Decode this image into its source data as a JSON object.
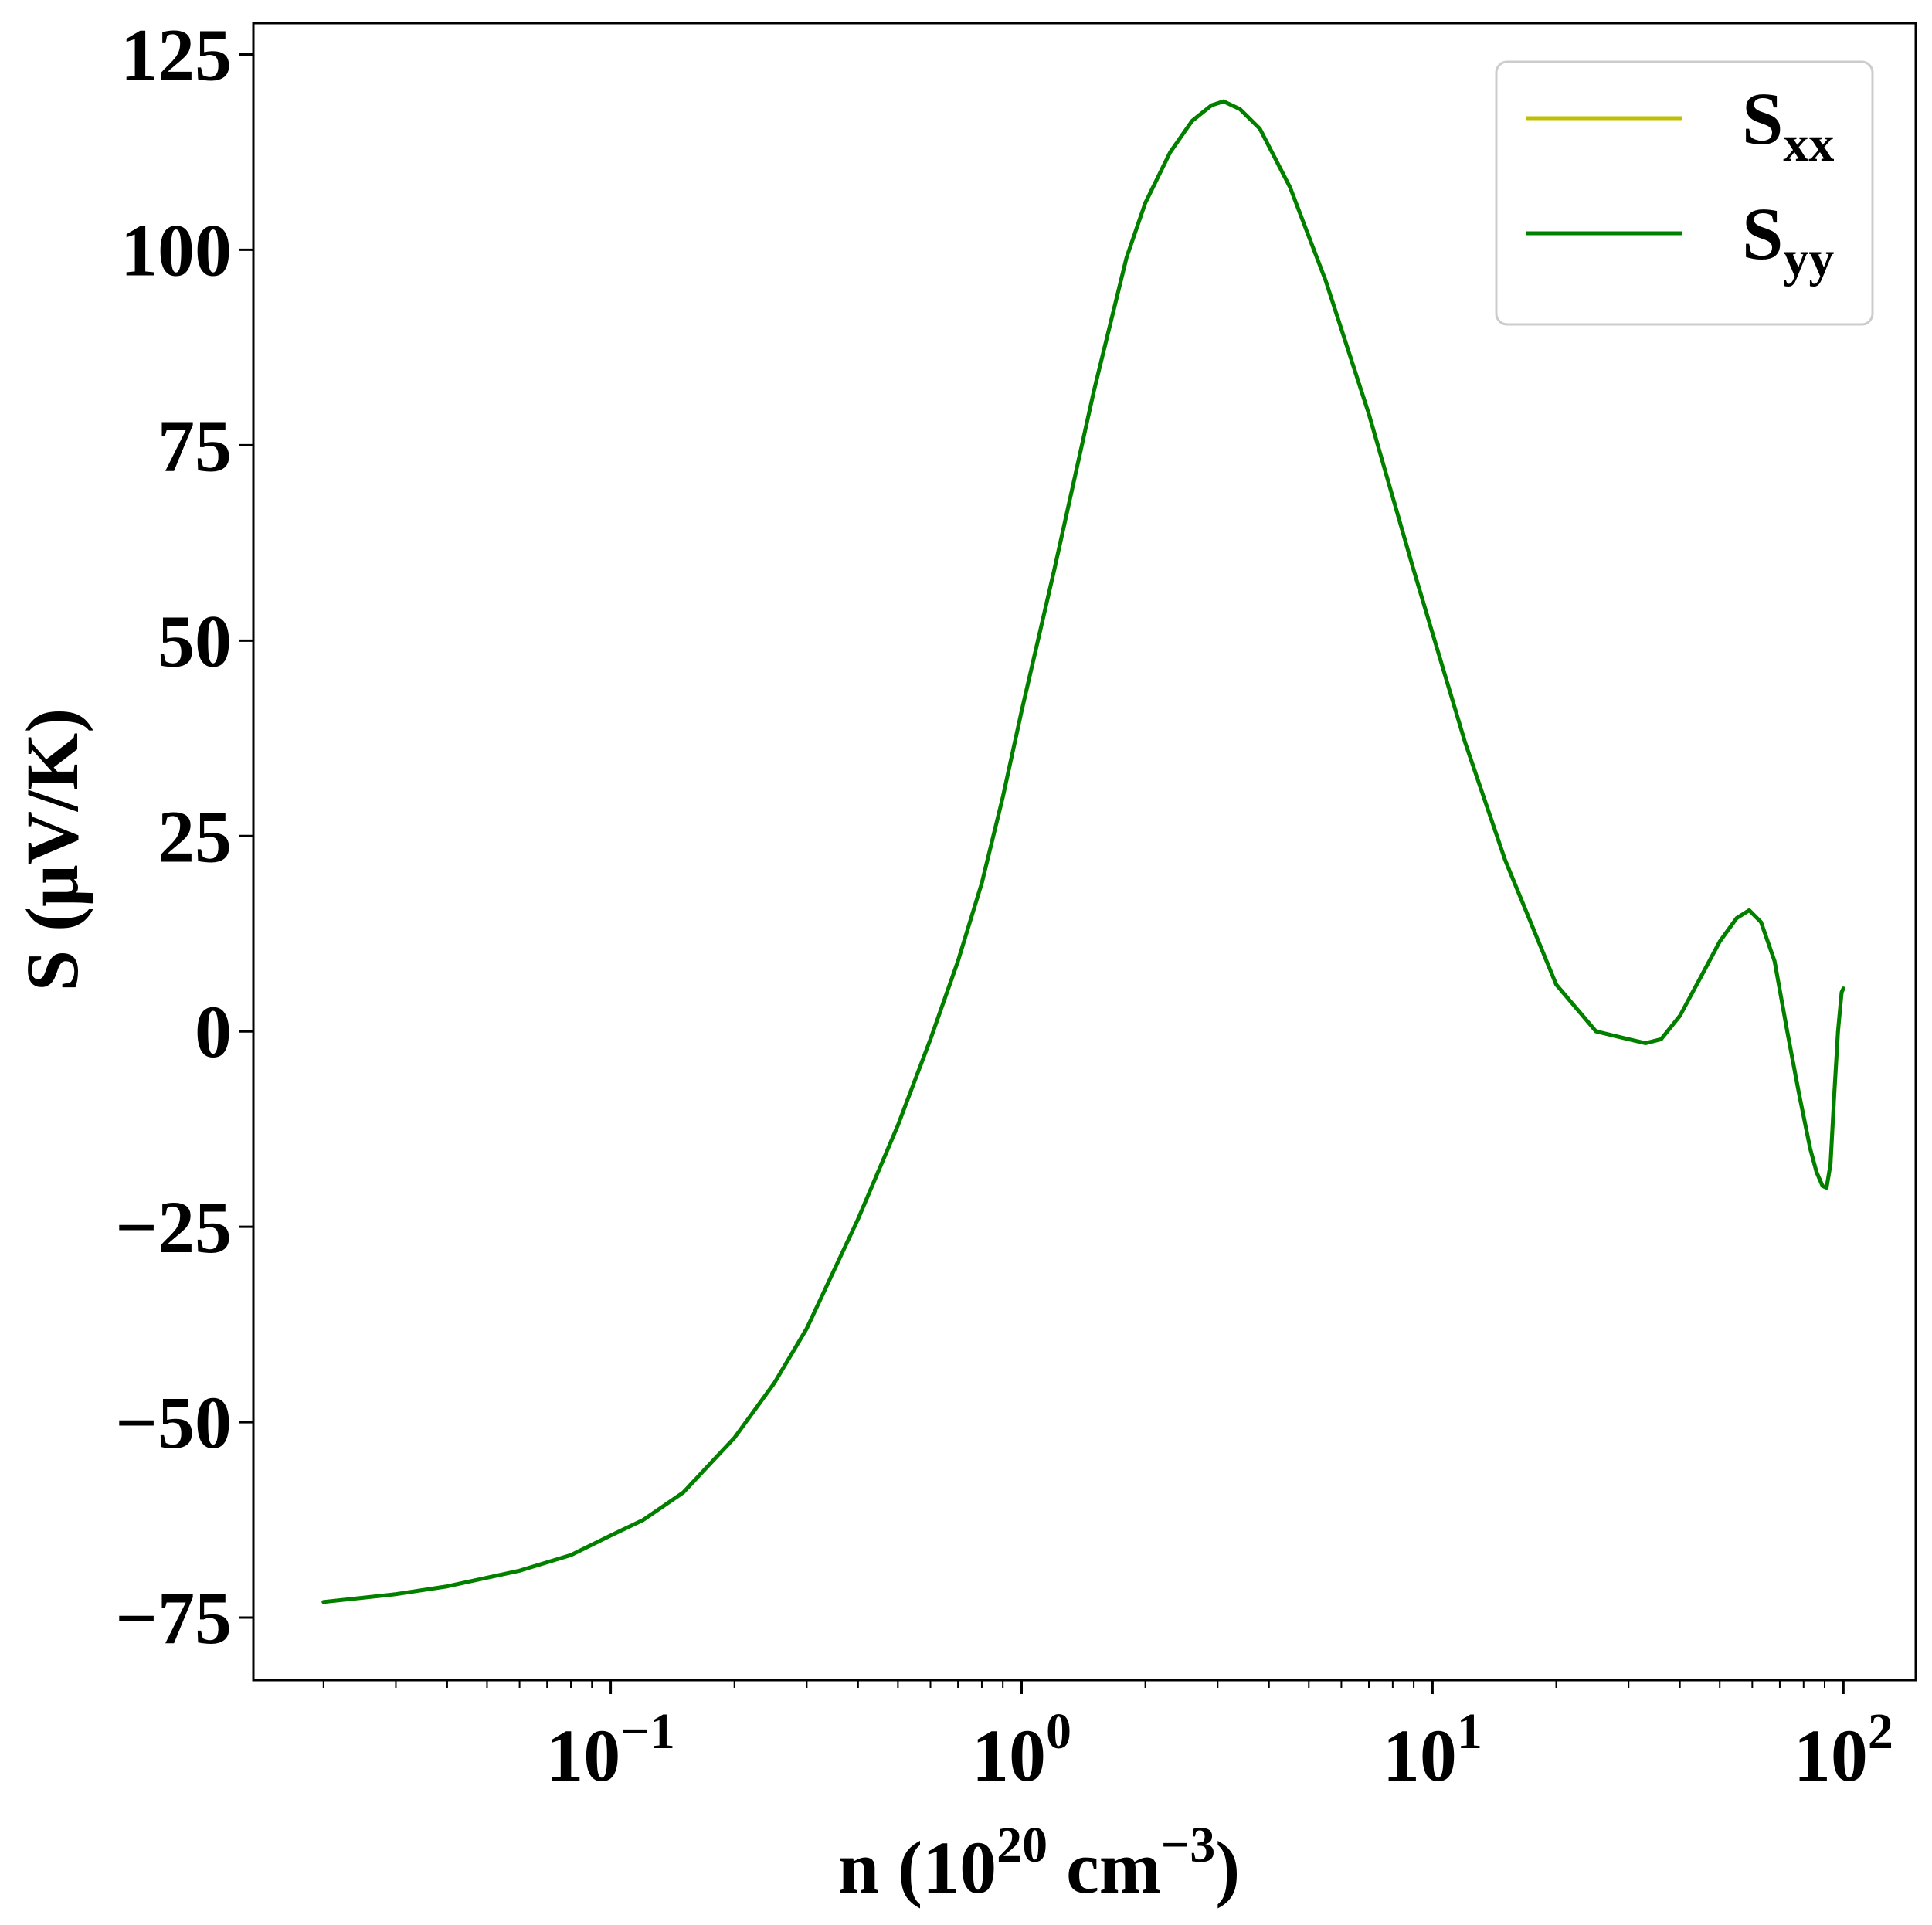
{
  "chart_data": {
    "type": "line",
    "xscale": "log",
    "xlim": [
      0.0135,
      150
    ],
    "ylim": [
      -83,
      129
    ],
    "grid": false,
    "legend_placement": "top-right",
    "xlabel": {
      "prefix": "n (10",
      "sup1": "20",
      "mid": " cm",
      "sup2": "−3",
      "suffix": ")"
    },
    "ylabel": "S (μV/K)",
    "x_ticks": [
      {
        "value": 0.1,
        "base": "10",
        "exp": "−1"
      },
      {
        "value": 1,
        "base": "10",
        "exp": "0"
      },
      {
        "value": 10,
        "base": "10",
        "exp": "1"
      },
      {
        "value": 100,
        "base": "10",
        "exp": "2"
      }
    ],
    "y_ticks": [
      {
        "value": 125,
        "label": "125"
      },
      {
        "value": 100,
        "label": "100"
      },
      {
        "value": 75,
        "label": "75"
      },
      {
        "value": 50,
        "label": "50"
      },
      {
        "value": 25,
        "label": "25"
      },
      {
        "value": 0,
        "label": "0"
      },
      {
        "value": -25,
        "label": "−25"
      },
      {
        "value": -50,
        "label": "−50"
      },
      {
        "value": -75,
        "label": "−75"
      }
    ],
    "series": [
      {
        "name": "S",
        "name_sub": "xx",
        "color": "#bfbf00",
        "x": [
          0.02,
          0.03,
          0.04,
          0.06,
          0.08,
          0.1,
          0.12,
          0.15,
          0.2,
          0.25,
          0.3,
          0.4,
          0.5,
          0.6,
          0.7,
          0.8,
          0.9,
          1.0,
          1.2,
          1.5,
          1.8,
          2.0,
          2.3,
          2.6,
          2.9,
          3.1,
          3.4,
          3.8,
          4.5,
          5.5,
          7.0,
          9.0,
          12,
          15,
          20,
          25,
          30,
          33,
          36,
          40,
          45,
          50,
          55,
          59,
          63,
          68,
          73,
          78,
          83,
          86,
          89,
          91,
          93,
          95,
          97,
          99,
          100
        ],
        "y": [
          -73.0,
          -72.0,
          -71.0,
          -69.0,
          -67.0,
          -64.5,
          -62.5,
          -59.0,
          -52.0,
          -45.0,
          -38.0,
          -24.0,
          -12.0,
          -1.0,
          9.0,
          19.0,
          30.0,
          41.0,
          59.0,
          82.0,
          99.0,
          106.0,
          112.5,
          116.5,
          118.5,
          119.0,
          118.0,
          115.5,
          108.0,
          96.0,
          79.0,
          59.0,
          37.0,
          22.0,
          6.0,
          0.0,
          -1.0,
          -1.5,
          -1.0,
          2.0,
          7.0,
          11.5,
          14.5,
          15.5,
          14.0,
          9.0,
          0.0,
          -8.0,
          -15.0,
          -18.0,
          -19.8,
          -20.0,
          -17.0,
          -8.0,
          0.0,
          5.0,
          5.5
        ]
      },
      {
        "name": "S",
        "name_sub": "yy",
        "color": "#008000",
        "x": [
          0.02,
          0.03,
          0.04,
          0.06,
          0.08,
          0.1,
          0.12,
          0.15,
          0.2,
          0.25,
          0.3,
          0.4,
          0.5,
          0.6,
          0.7,
          0.8,
          0.9,
          1.0,
          1.2,
          1.5,
          1.8,
          2.0,
          2.3,
          2.6,
          2.9,
          3.1,
          3.4,
          3.8,
          4.5,
          5.5,
          7.0,
          9.0,
          12,
          15,
          20,
          25,
          30,
          33,
          36,
          40,
          45,
          50,
          55,
          59,
          63,
          68,
          73,
          78,
          83,
          86,
          89,
          91,
          93,
          95,
          97,
          99,
          100
        ],
        "y": [
          -73.0,
          -72.0,
          -71.0,
          -69.0,
          -67.0,
          -64.5,
          -62.5,
          -59.0,
          -52.0,
          -45.0,
          -38.0,
          -24.0,
          -12.0,
          -1.0,
          9.0,
          19.0,
          30.0,
          41.0,
          59.0,
          82.0,
          99.0,
          106.0,
          112.5,
          116.5,
          118.5,
          119.0,
          118.0,
          115.5,
          108.0,
          96.0,
          79.0,
          59.0,
          37.0,
          22.0,
          6.0,
          0.0,
          -1.0,
          -1.5,
          -1.0,
          2.0,
          7.0,
          11.5,
          14.5,
          15.5,
          14.0,
          9.0,
          0.0,
          -8.0,
          -15.0,
          -18.0,
          -19.8,
          -20.0,
          -17.0,
          -8.0,
          0.0,
          5.0,
          5.5
        ]
      }
    ]
  }
}
